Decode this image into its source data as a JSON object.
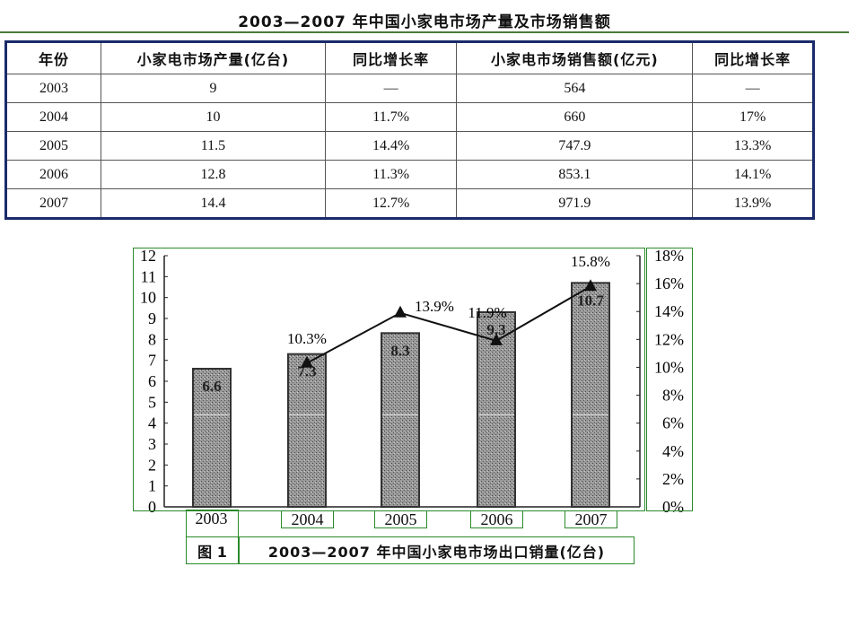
{
  "title": "2003—2007 年中国小家电市场产量及市场销售额",
  "table": {
    "headers": [
      "年份",
      "小家电市场产量(亿台)",
      "同比增长率",
      "小家电市场销售额(亿元)",
      "同比增长率"
    ],
    "rows": [
      [
        "2003",
        "9",
        "—",
        "564",
        "—"
      ],
      [
        "2004",
        "10",
        "11.7%",
        "660",
        "17%"
      ],
      [
        "2005",
        "11.5",
        "14.4%",
        "747.9",
        "13.3%"
      ],
      [
        "2006",
        "12.8",
        "11.3%",
        "853.1",
        "14.1%"
      ],
      [
        "2007",
        "14.4",
        "12.7%",
        "971.9",
        "13.9%"
      ]
    ]
  },
  "chart_data": {
    "type": "bar",
    "title": "2003—2007 年中国小家电市场出口销量(亿台)",
    "figure_label": "图 1",
    "categories": [
      "2003",
      "2004",
      "2005",
      "2006",
      "2007"
    ],
    "series": [
      {
        "type": "bar",
        "values": [
          6.6,
          7.3,
          8.3,
          9.3,
          10.7
        ],
        "labels": [
          "6.6",
          "7.3",
          "8.3",
          "9.3",
          "10.7"
        ],
        "color": "#8c8c8c",
        "axis": "left"
      },
      {
        "type": "line",
        "values": [
          null,
          10.3,
          13.9,
          11.9,
          15.8
        ],
        "labels": [
          "",
          "10.3%",
          "13.9%",
          "11.9%",
          "15.8%"
        ],
        "color": "#111111",
        "marker": "triangle",
        "axis": "right"
      }
    ],
    "left_axis": {
      "range": [
        0,
        12
      ],
      "ticks": [
        "0",
        "1",
        "2",
        "3",
        "4",
        "5",
        "6",
        "7",
        "8",
        "9",
        "10",
        "11",
        "12"
      ]
    },
    "right_axis": {
      "range": [
        0,
        18
      ],
      "ticks": [
        "0%",
        "2%",
        "4%",
        "6%",
        "8%",
        "10%",
        "12%",
        "14%",
        "16%",
        "18%"
      ]
    },
    "grid": false
  }
}
